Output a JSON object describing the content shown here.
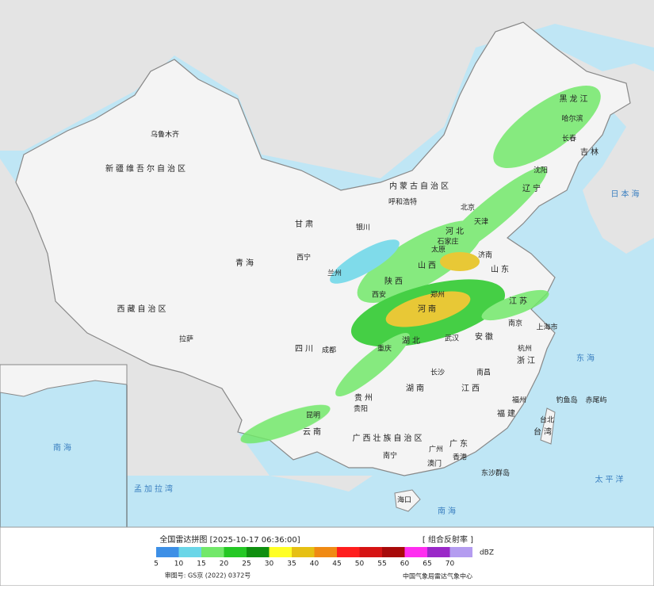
{
  "map": {
    "labels": [
      "乌鲁木齐",
      "新疆维吾尔自治区",
      "西藏自治区",
      "拉萨",
      "青海",
      "西宁",
      "甘肃",
      "内蒙古自治区",
      "呼和浩特",
      "银川",
      "兰州",
      "四川",
      "成都",
      "重庆",
      "贵州",
      "贵阳",
      "云南",
      "昆明",
      "广西壮族自治区",
      "南宁",
      "广东",
      "广州",
      "海口",
      "湖南",
      "长沙",
      "湖北",
      "武汉",
      "江西",
      "南昌",
      "福建",
      "福州",
      "浙江",
      "杭州",
      "上海市",
      "安徽",
      "南京",
      "江苏",
      "山东",
      "济南",
      "河南",
      "郑州",
      "河北",
      "石家庄",
      "北京",
      "天津",
      "山西",
      "太原",
      "陕西",
      "西安",
      "黑龙江",
      "哈尔滨",
      "吉林",
      "长春",
      "辽宁",
      "沈阳",
      "台湾",
      "台北",
      "日本海",
      "东海",
      "太平洋",
      "孟加拉湾",
      "南海",
      "钓鱼岛",
      "赤尾屿",
      "东沙群岛",
      "香港",
      "澳门"
    ],
    "inset": {
      "label": "南海"
    }
  },
  "legend": {
    "title": "全国雷达拼图 [2025-10-17 06:36:00]",
    "product": "[ 组合反射率 ]",
    "unit": "dBZ",
    "levels": [
      5,
      10,
      15,
      20,
      25,
      30,
      35,
      40,
      45,
      50,
      55,
      60,
      65,
      70
    ],
    "colors": [
      "#3d8fe6",
      "#6ad6e8",
      "#72e86a",
      "#25c825",
      "#0f8f0f",
      "#ffff26",
      "#e6c014",
      "#f08a14",
      "#ff1e1e",
      "#d61414",
      "#a80a0a",
      "#ff2ef0",
      "#9a28c8",
      "#b49cf0"
    ],
    "approval": "审图号: GS京 (2022) 0372号",
    "source": "中国气象局雷达气象中心"
  }
}
